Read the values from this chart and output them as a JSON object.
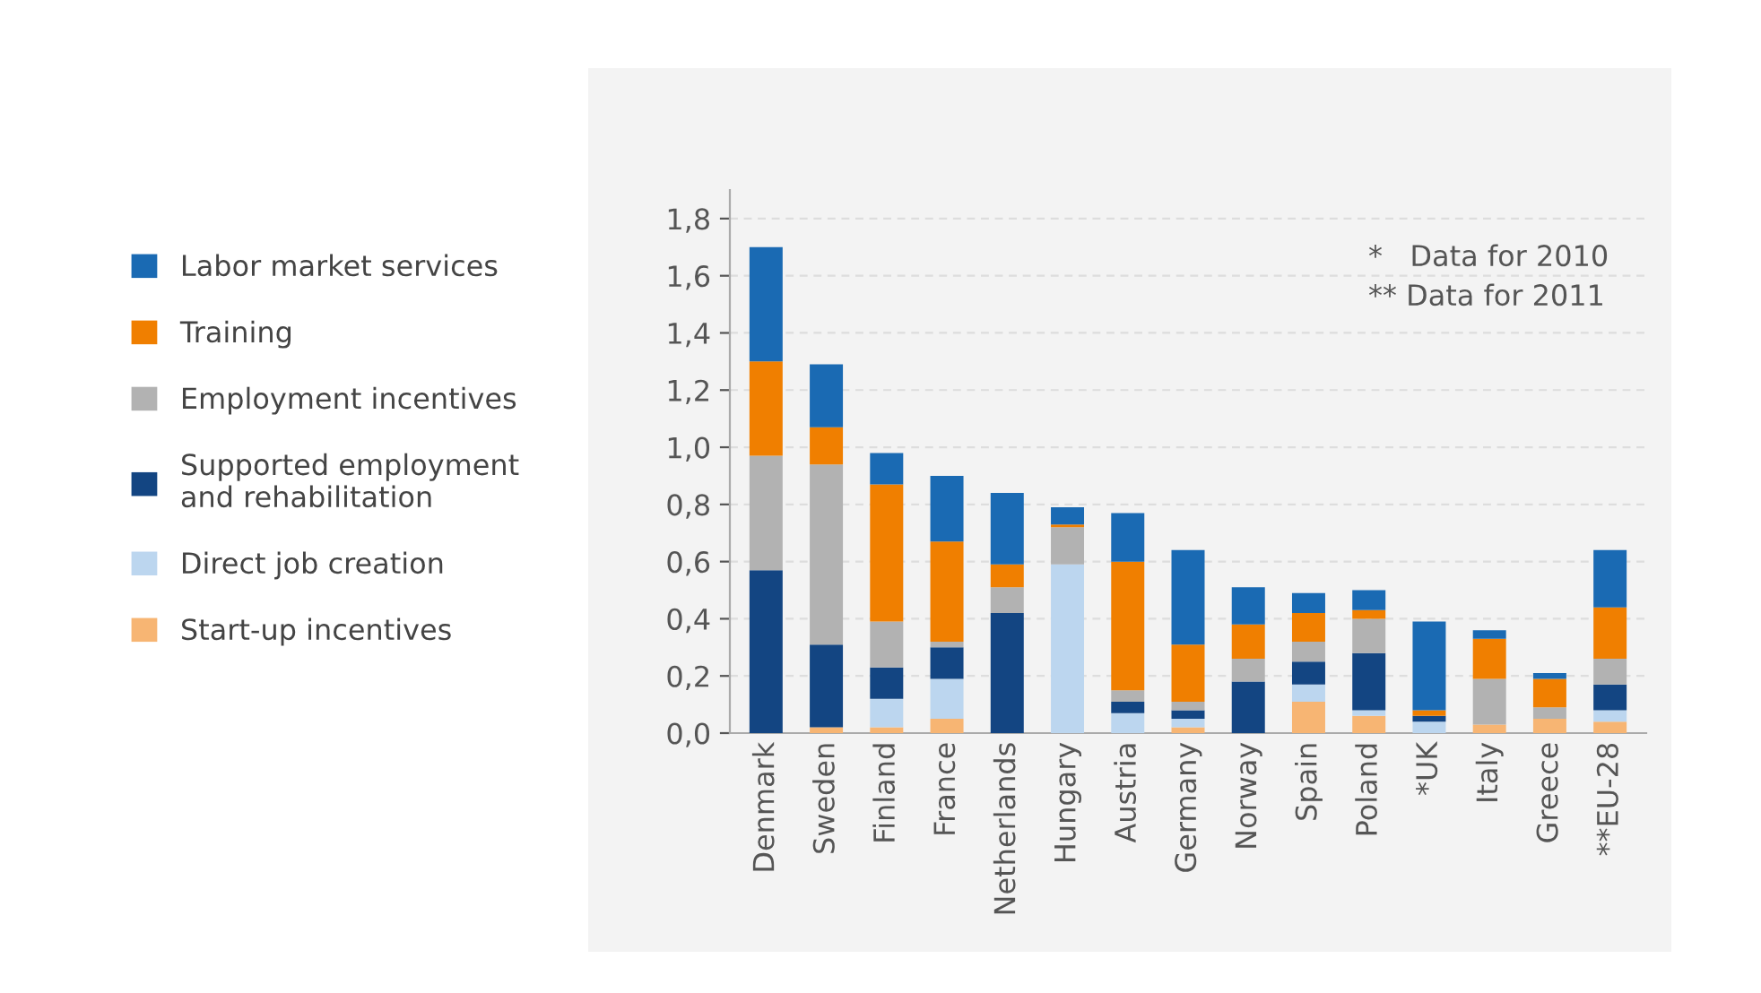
{
  "chart_data": {
    "type": "bar",
    "stacked": true,
    "categories": [
      "Denmark",
      "Sweden",
      "Finland",
      "France",
      "Netherlands",
      "Hungary",
      "Austria",
      "Germany",
      "Norway",
      "Spain",
      "Poland",
      "*UK",
      "Italy",
      "Greece",
      "**EU-28"
    ],
    "series": [
      {
        "name": "Start-up incentives",
        "color": "#f7b573",
        "values": [
          0,
          0.02,
          0.02,
          0.05,
          0,
          0,
          0,
          0.02,
          0,
          0.11,
          0.06,
          0,
          0.03,
          0.05,
          0.04
        ]
      },
      {
        "name": "Direct job creation",
        "color": "#bcd6ef",
        "values": [
          0,
          0,
          0.1,
          0.14,
          0,
          0.59,
          0.07,
          0.03,
          0,
          0.06,
          0.02,
          0.04,
          0,
          0,
          0.04
        ]
      },
      {
        "name": "Supported employment\nand rehabilitation",
        "color": "#134582",
        "values": [
          0.57,
          0.29,
          0.11,
          0.11,
          0.42,
          0,
          0.04,
          0.03,
          0.18,
          0.08,
          0.2,
          0.02,
          0,
          0,
          0.09
        ]
      },
      {
        "name": "Employment incentives",
        "color": "#b2b2b2",
        "values": [
          0.4,
          0.63,
          0.16,
          0.02,
          0.09,
          0.13,
          0.04,
          0.03,
          0.08,
          0.07,
          0.12,
          null,
          0.16,
          0.04,
          0.09
        ]
      },
      {
        "name": "Training",
        "color": "#f07f00",
        "values": [
          0.33,
          0.13,
          0.48,
          0.35,
          0.08,
          0.01,
          0.45,
          0.2,
          0.12,
          0.1,
          0.03,
          0.02,
          0.14,
          0.1,
          0.18
        ]
      },
      {
        "name": "Labor market services",
        "color": "#1a6ab3",
        "values": [
          0.4,
          0.22,
          0.11,
          0.23,
          0.25,
          0.06,
          0.17,
          0.33,
          0.13,
          0.07,
          0.07,
          0.31,
          0.03,
          0.02,
          0.2
        ]
      }
    ],
    "ylim": [
      0,
      1.9
    ],
    "yticks": [
      {
        "value": 0,
        "label": "0,0"
      },
      {
        "value": 0.2,
        "label": "0,2"
      },
      {
        "value": 0.4,
        "label": "0,4"
      },
      {
        "value": 0.6,
        "label": "0,6"
      },
      {
        "value": 0.8,
        "label": "0,8"
      },
      {
        "value": 1.0,
        "label": "1,0"
      },
      {
        "value": 1.2,
        "label": "1,2"
      },
      {
        "value": 1.4,
        "label": "1,4"
      },
      {
        "value": 1.6,
        "label": "1,6"
      },
      {
        "value": 1.8,
        "label": "1,8"
      }
    ],
    "grid": "y",
    "legend": "left",
    "annotations": [
      "*   Data for 2010",
      "** Data for 2011"
    ]
  }
}
